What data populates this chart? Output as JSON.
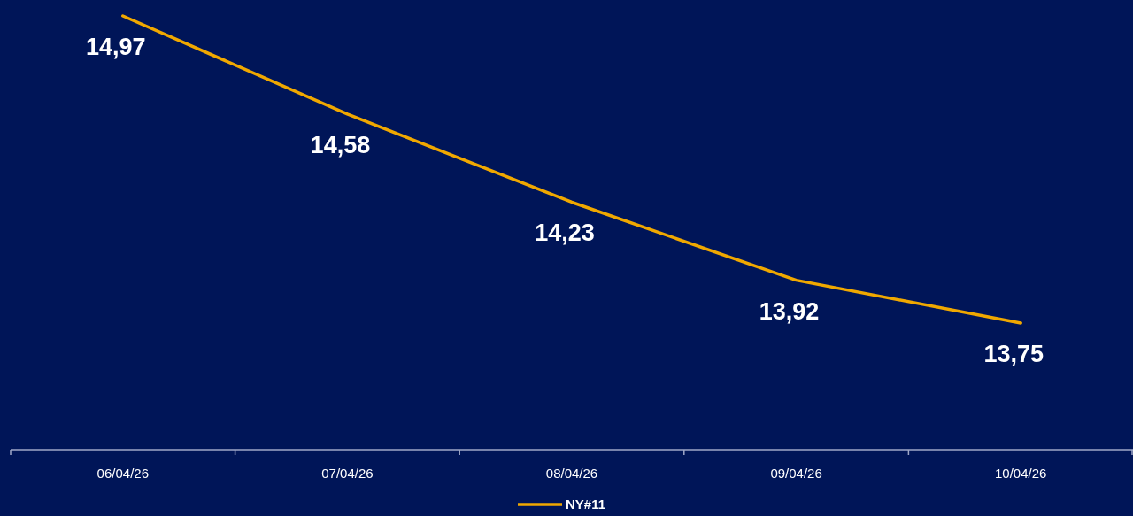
{
  "chart_data": {
    "type": "line",
    "categories": [
      "06/04/26",
      "07/04/26",
      "08/04/26",
      "09/04/26",
      "10/04/26"
    ],
    "series": [
      {
        "name": "NY#11",
        "color": "#f0a800",
        "values": [
          14.97,
          14.58,
          14.23,
          13.92,
          13.75
        ],
        "value_labels": [
          "14,97",
          "14,58",
          "14,23",
          "13,92",
          "13,75"
        ]
      }
    ],
    "legend": "bottom",
    "marker": "none",
    "line_style": "solid"
  }
}
